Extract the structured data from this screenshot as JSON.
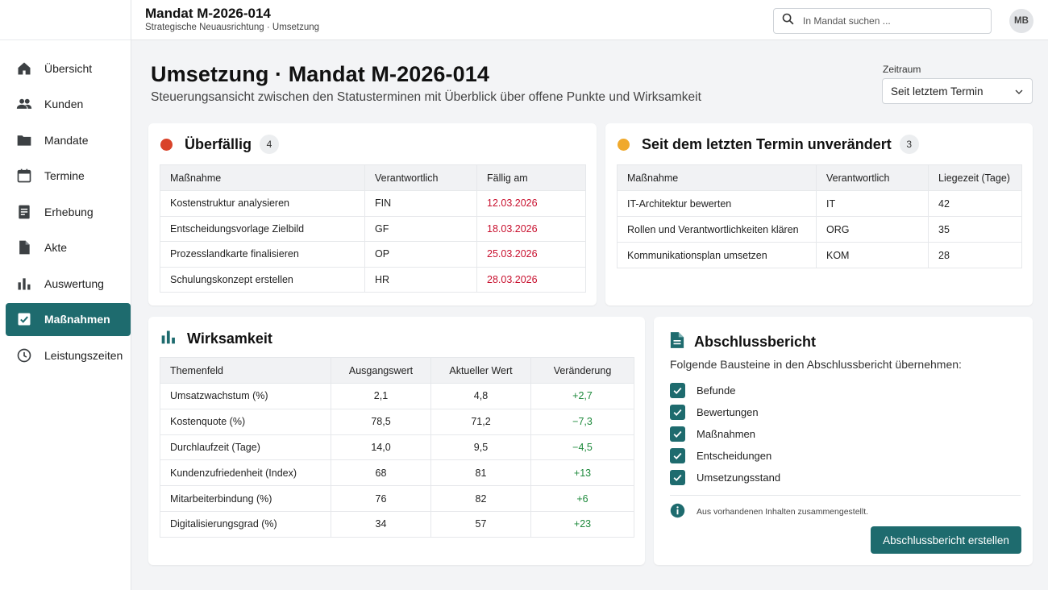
{
  "header": {
    "title": "Mandat M-2026-014",
    "subtitle": "Strategische Neuausrichtung · Umsetzung",
    "search_placeholder": "In Mandat suchen ...",
    "avatar_initials": "MB"
  },
  "sidebar": {
    "items": [
      {
        "label": "Übersicht",
        "icon": "home-icon"
      },
      {
        "label": "Kunden",
        "icon": "people-icon"
      },
      {
        "label": "Mandate",
        "icon": "folder-icon"
      },
      {
        "label": "Termine",
        "icon": "calendar-icon"
      },
      {
        "label": "Erhebung",
        "icon": "form-icon"
      },
      {
        "label": "Akte",
        "icon": "file-icon"
      },
      {
        "label": "Auswertung",
        "icon": "bar-chart-icon"
      },
      {
        "label": "Maßnahmen",
        "icon": "checkbox-icon",
        "active": true
      },
      {
        "label": "Leistungszeiten",
        "icon": "clock-icon"
      }
    ]
  },
  "page": {
    "title": "Umsetzung · Mandat M-2026-014",
    "subtitle": "Steuerungsansicht zwischen den Statusterminen mit Überblick über offene Punkte und Wirksamkeit",
    "zeitraum_label": "Zeitraum",
    "zeitraum_value": "Seit letztem Termin"
  },
  "overdue": {
    "title": "Überfällig",
    "count": "4",
    "dot_color": "#d9432a",
    "headers": [
      "Maßnahme",
      "Verantwortlich",
      "Fällig am"
    ],
    "rows": [
      [
        "Kostenstruktur analysieren",
        "FIN",
        "12.03.2026"
      ],
      [
        "Entscheidungsvorlage Zielbild",
        "GF",
        "18.03.2026"
      ],
      [
        "Prozesslandkarte finalisieren",
        "OP",
        "25.03.2026"
      ],
      [
        "Schulungskonzept erstellen",
        "HR",
        "28.03.2026"
      ]
    ]
  },
  "unchanged": {
    "title": "Seit dem letzten Termin unverändert",
    "count": "3",
    "dot_color": "#f0a92c",
    "headers": [
      "Maßnahme",
      "Verantwortlich",
      "Liegezeit (Tage)"
    ],
    "rows": [
      [
        "IT-Architektur bewerten",
        "IT",
        "42"
      ],
      [
        "Rollen und Verantwortlichkeiten klären",
        "ORG",
        "35"
      ],
      [
        "Kommunikationsplan umsetzen",
        "KOM",
        "28"
      ]
    ]
  },
  "effectiveness": {
    "title": "Wirksamkeit",
    "headers": [
      "Themenfeld",
      "Ausgangswert",
      "Aktueller Wert",
      "Veränderung"
    ],
    "rows": [
      [
        "Umsatzwachstum (%)",
        "2,1",
        "4,8",
        "+2,7"
      ],
      [
        "Kostenquote (%)",
        "78,5",
        "71,2",
        "−7,3"
      ],
      [
        "Durchlaufzeit (Tage)",
        "14,0",
        "9,5",
        "−4,5"
      ],
      [
        "Kundenzufriedenheit (Index)",
        "68",
        "81",
        "+13"
      ],
      [
        "Mitarbeiterbindung (%)",
        "76",
        "82",
        "+6"
      ],
      [
        "Digitalisierungsgrad (%)",
        "34",
        "57",
        "+23"
      ]
    ]
  },
  "report": {
    "title": "Abschlussbericht",
    "description": "Folgende Bausteine in den Abschlussbericht übernehmen:",
    "items": [
      "Befunde",
      "Bewertungen",
      "Maßnahmen",
      "Entscheidungen",
      "Umsetzungsstand"
    ],
    "info": "Aus vorhandenen Inhalten zusammengestellt.",
    "button": "Abschlussbericht erstellen"
  },
  "colors": {
    "accent": "#1e6b6e",
    "overdue_text": "#c8102e",
    "positive_change": "#1e8a3c"
  }
}
